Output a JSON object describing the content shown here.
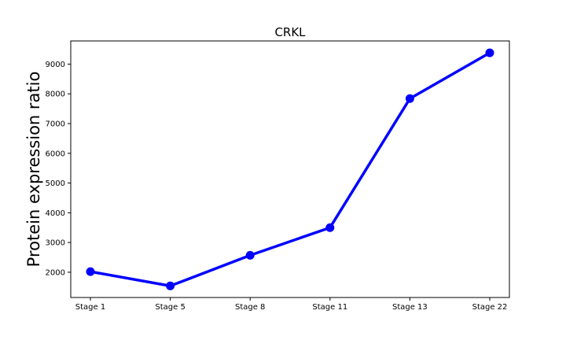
{
  "chart_data": {
    "type": "line",
    "title": "CRKL",
    "xlabel": "",
    "ylabel": "Protein expression ratio",
    "categories": [
      "Stage 1",
      "Stage 5",
      "Stage 8",
      "Stage 11",
      "Stage 13",
      "Stage 22"
    ],
    "series": [
      {
        "values": [
          2020,
          1540,
          2570,
          3500,
          7840,
          9380
        ],
        "color": "#0000ff",
        "marker": "circle"
      }
    ],
    "ylim": [
      1150,
      9780
    ],
    "yticks": [
      2000,
      3000,
      4000,
      5000,
      6000,
      7000,
      8000,
      9000
    ],
    "grid": false,
    "legend": "none"
  }
}
